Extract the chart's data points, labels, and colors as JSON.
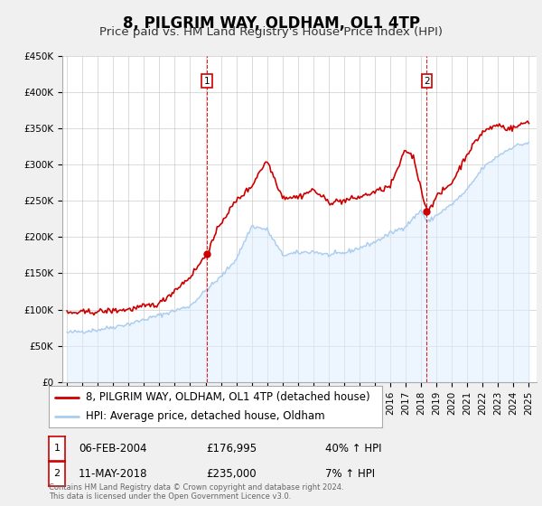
{
  "title": "8, PILGRIM WAY, OLDHAM, OL1 4TP",
  "subtitle": "Price paid vs. HM Land Registry's House Price Index (HPI)",
  "ylim": [
    0,
    450000
  ],
  "yticks": [
    0,
    50000,
    100000,
    150000,
    200000,
    250000,
    300000,
    350000,
    400000,
    450000
  ],
  "ytick_labels": [
    "£0",
    "£50K",
    "£100K",
    "£150K",
    "£200K",
    "£250K",
    "£300K",
    "£350K",
    "£400K",
    "£450K"
  ],
  "xlim_start": 1994.7,
  "xlim_end": 2025.5,
  "xticks": [
    1995,
    1996,
    1997,
    1998,
    1999,
    2000,
    2001,
    2002,
    2003,
    2004,
    2005,
    2006,
    2007,
    2008,
    2009,
    2010,
    2011,
    2012,
    2013,
    2014,
    2015,
    2016,
    2017,
    2018,
    2019,
    2020,
    2021,
    2022,
    2023,
    2024,
    2025
  ],
  "background_color": "#f0f0f0",
  "plot_bg_color": "#ffffff",
  "grid_color": "#cccccc",
  "red_line_color": "#cc0000",
  "blue_line_color": "#aaccee",
  "blue_fill_color": "#ddeeff",
  "sale1_x": 2004.1,
  "sale1_y": 176995,
  "sale1_label": "1",
  "sale1_date": "06-FEB-2004",
  "sale1_price": "£176,995",
  "sale1_hpi": "40% ↑ HPI",
  "sale2_x": 2018.37,
  "sale2_y": 235000,
  "sale2_label": "2",
  "sale2_date": "11-MAY-2018",
  "sale2_price": "£235,000",
  "sale2_hpi": "7% ↑ HPI",
  "legend_line1": "8, PILGRIM WAY, OLDHAM, OL1 4TP (detached house)",
  "legend_line2": "HPI: Average price, detached house, Oldham",
  "footnote": "Contains HM Land Registry data © Crown copyright and database right 2024.\nThis data is licensed under the Open Government Licence v3.0.",
  "title_fontsize": 12,
  "subtitle_fontsize": 9.5,
  "tick_fontsize": 7.5,
  "legend_fontsize": 8.5,
  "table_fontsize": 8.5
}
